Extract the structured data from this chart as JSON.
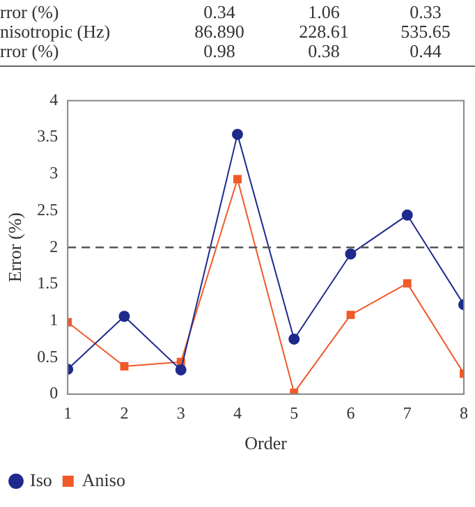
{
  "chart_data": {
    "type": "line",
    "xlabel": "Order",
    "ylabel": "Error (%)",
    "x": [
      1,
      2,
      3,
      4,
      5,
      6,
      7,
      8
    ],
    "series": [
      {
        "name": "Iso",
        "color": "#1f2a8c",
        "marker": "circle",
        "values": [
          0.34,
          1.06,
          0.33,
          3.54,
          0.75,
          1.91,
          2.44,
          1.22
        ]
      },
      {
        "name": "Aniso",
        "color": "#f05a28",
        "marker": "square",
        "values": [
          0.98,
          0.38,
          0.44,
          2.93,
          0.02,
          1.08,
          1.51,
          0.28
        ]
      }
    ],
    "xlim": [
      1,
      8
    ],
    "xticks": [
      1,
      2,
      3,
      4,
      5,
      6,
      7,
      8
    ],
    "ylim": [
      0,
      4
    ],
    "yticks": [
      0,
      0.5,
      1,
      1.5,
      2,
      2.5,
      3,
      3.5,
      4
    ],
    "grid": false,
    "legend": "bottom left",
    "line_style": "solid",
    "ref_lines": [
      {
        "axis": "y",
        "value": 2,
        "color": "#555555",
        "line_style": "dashed"
      }
    ],
    "annotations": [
      "rror (%)",
      "0.34",
      "1.06",
      "0.33",
      "nisotropic (Hz)",
      "86.890",
      "228.61",
      "535.65",
      "rror (%)",
      "0.98",
      "0.38",
      "0.44"
    ]
  }
}
